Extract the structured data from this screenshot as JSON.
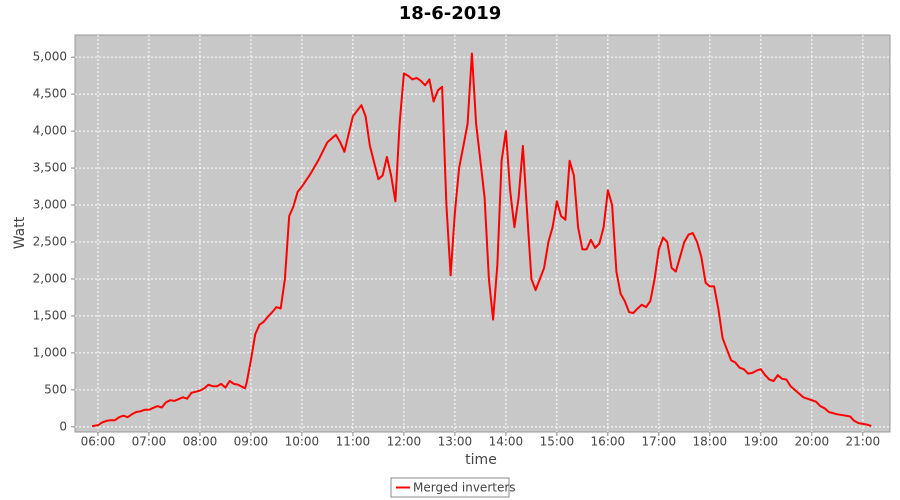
{
  "chart_data": {
    "type": "line",
    "title": "18-6-2019",
    "x_label": "time",
    "y_label": "Watt",
    "x": [
      "05:53",
      "06:00",
      "06:05",
      "06:10",
      "06:15",
      "06:20",
      "06:25",
      "06:30",
      "06:35",
      "06:40",
      "06:45",
      "06:50",
      "06:55",
      "07:00",
      "07:10",
      "07:15",
      "07:20",
      "07:25",
      "07:30",
      "07:40",
      "07:45",
      "07:50",
      "08:00",
      "08:05",
      "08:10",
      "08:15",
      "08:20",
      "08:25",
      "08:30",
      "08:35",
      "08:40",
      "08:45",
      "08:53",
      "08:55",
      "09:00",
      "09:05",
      "09:10",
      "09:15",
      "09:20",
      "09:25",
      "09:30",
      "09:35",
      "09:40",
      "09:45",
      "09:50",
      "09:55",
      "10:00",
      "10:10",
      "10:20",
      "10:30",
      "10:40",
      "10:45",
      "10:50",
      "11:00",
      "11:10",
      "11:15",
      "11:20",
      "11:30",
      "11:35",
      "11:40",
      "11:45",
      "11:50",
      "11:55",
      "12:00",
      "12:05",
      "12:10",
      "12:15",
      "12:20",
      "12:25",
      "12:30",
      "12:35",
      "12:40",
      "12:45",
      "12:50",
      "12:55",
      "13:00",
      "13:05",
      "13:10",
      "13:15",
      "13:20",
      "13:25",
      "13:30",
      "13:35",
      "13:40",
      "13:45",
      "13:50",
      "13:55",
      "14:00",
      "14:05",
      "14:10",
      "14:15",
      "14:20",
      "14:25",
      "14:30",
      "14:35",
      "14:40",
      "14:45",
      "14:50",
      "14:55",
      "15:00",
      "15:05",
      "15:10",
      "15:15",
      "15:20",
      "15:25",
      "15:30",
      "15:35",
      "15:40",
      "15:45",
      "15:50",
      "15:55",
      "16:00",
      "16:05",
      "16:10",
      "16:15",
      "16:20",
      "16:25",
      "16:30",
      "16:35",
      "16:40",
      "16:45",
      "16:50",
      "16:55",
      "17:00",
      "17:05",
      "17:10",
      "17:15",
      "17:20",
      "17:25",
      "17:30",
      "17:35",
      "17:40",
      "17:45",
      "17:50",
      "17:55",
      "18:00",
      "18:05",
      "18:10",
      "18:15",
      "18:20",
      "18:25",
      "18:30",
      "18:35",
      "18:40",
      "18:45",
      "18:50",
      "18:55",
      "19:00",
      "19:05",
      "19:10",
      "19:15",
      "19:20",
      "19:25",
      "19:30",
      "19:35",
      "19:40",
      "19:45",
      "19:50",
      "20:00",
      "20:05",
      "20:10",
      "20:15",
      "20:20",
      "20:30",
      "20:40",
      "20:45",
      "20:50",
      "20:55",
      "21:00",
      "21:05",
      "21:10"
    ],
    "series": [
      {
        "name": "Merged inverters",
        "color": "#ff0000",
        "values": [
          10,
          20,
          60,
          80,
          90,
          90,
          130,
          150,
          130,
          170,
          200,
          210,
          230,
          230,
          280,
          260,
          330,
          360,
          350,
          400,
          380,
          460,
          490,
          520,
          570,
          550,
          550,
          580,
          530,
          620,
          580,
          570,
          520,
          600,
          900,
          1250,
          1380,
          1420,
          1490,
          1550,
          1620,
          1600,
          2000,
          2850,
          2980,
          3180,
          3250,
          3420,
          3620,
          3850,
          3950,
          3850,
          3720,
          4200,
          4350,
          4200,
          3800,
          3350,
          3400,
          3650,
          3400,
          3050,
          4100,
          4780,
          4750,
          4700,
          4720,
          4680,
          4620,
          4700,
          4400,
          4550,
          4600,
          3000,
          2050,
          2900,
          3500,
          3800,
          4100,
          5050,
          4100,
          3600,
          3100,
          2000,
          1450,
          2200,
          3600,
          4000,
          3200,
          2700,
          3100,
          3800,
          2900,
          2000,
          1850,
          2000,
          2150,
          2500,
          2700,
          3050,
          2850,
          2800,
          3600,
          3400,
          2700,
          2400,
          2400,
          2530,
          2420,
          2480,
          2700,
          3200,
          3000,
          2100,
          1800,
          1700,
          1550,
          1540,
          1600,
          1650,
          1620,
          1700,
          2000,
          2400,
          2560,
          2500,
          2150,
          2100,
          2300,
          2500,
          2600,
          2620,
          2500,
          2300,
          1950,
          1900,
          1900,
          1600,
          1200,
          1050,
          900,
          870,
          800,
          780,
          720,
          730,
          760,
          780,
          700,
          640,
          620,
          700,
          650,
          640,
          550,
          500,
          450,
          400,
          360,
          340,
          280,
          250,
          200,
          170,
          150,
          140,
          80,
          50,
          40,
          30,
          10
        ]
      }
    ],
    "xlim": [
      "05:33",
      "21:32"
    ],
    "xticks": [
      "06:00",
      "07:00",
      "08:00",
      "09:00",
      "10:00",
      "11:00",
      "12:00",
      "13:00",
      "14:00",
      "15:00",
      "16:00",
      "17:00",
      "18:00",
      "19:00",
      "20:00",
      "21:00"
    ],
    "ylim": [
      -70,
      5300
    ],
    "yticks": [
      0,
      500,
      {
        "value": 1000,
        "label": "1,000"
      },
      {
        "value": 1500,
        "label": "1,500"
      },
      {
        "value": 2000,
        "label": "2,000"
      },
      {
        "value": 2500,
        "label": "2,500"
      },
      {
        "value": 3000,
        "label": "3,000"
      },
      {
        "value": 3500,
        "label": "3,500"
      },
      {
        "value": 4000,
        "label": "4,000"
      },
      {
        "value": 4500,
        "label": "4,500"
      },
      {
        "value": 5000,
        "label": "5,000"
      }
    ],
    "grid": true
  }
}
